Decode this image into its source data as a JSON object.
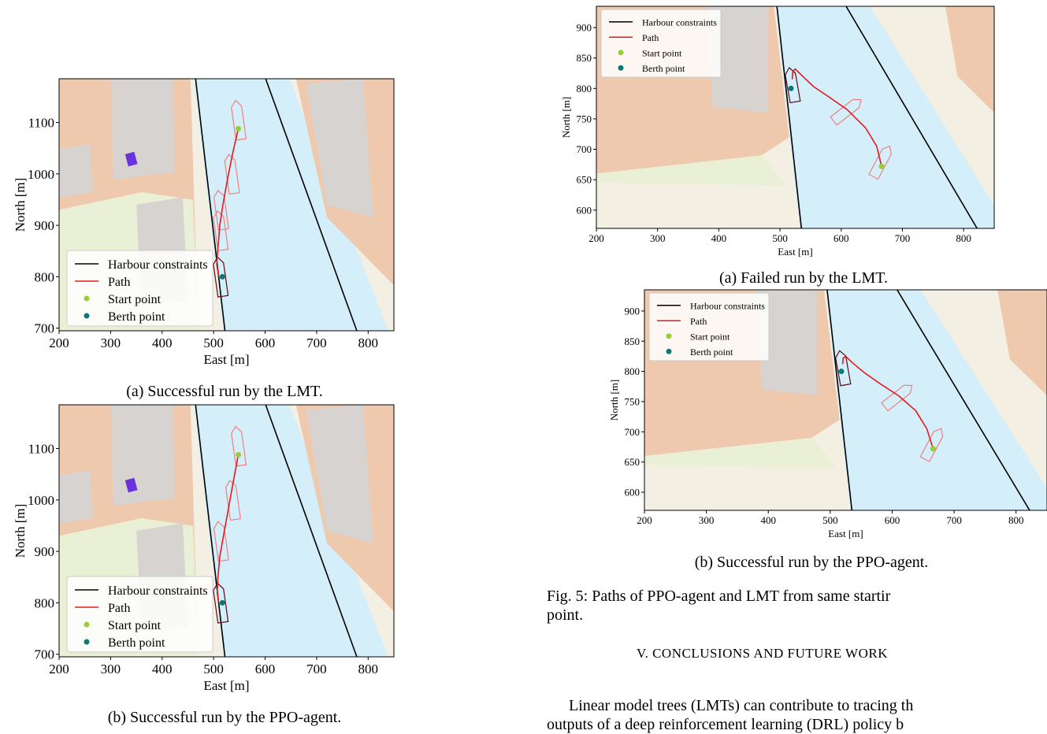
{
  "chart_data": [
    {
      "id": "left-a",
      "type": "line",
      "caption": "(a) Successful run by the LMT.",
      "xlabel": "East [m]",
      "ylabel": "North [m]",
      "xlim": [
        200,
        850
      ],
      "ylim": [
        695,
        1185
      ],
      "xticks": [
        200,
        300,
        400,
        500,
        600,
        700,
        800
      ],
      "yticks": [
        700,
        800,
        900,
        1000,
        1100
      ],
      "legend": [
        "Harbour constraints",
        "Path",
        "Start point",
        "Berth point"
      ],
      "legend_position": "lower-left",
      "constraints": [
        [
          [
            465,
            1185
          ],
          [
            522,
            695
          ]
        ],
        [
          [
            601,
            1185
          ],
          [
            778,
            695
          ]
        ]
      ],
      "path": [
        [
          548,
          1088
        ],
        [
          537,
          1040
        ],
        [
          527,
          990
        ],
        [
          518,
          940
        ],
        [
          512,
          900
        ],
        [
          508,
          850
        ],
        [
          506,
          825
        ],
        [
          510,
          800
        ]
      ],
      "start_point": [
        548,
        1088
      ],
      "berth_point": [
        517,
        800
      ],
      "vessel_outlines": [
        [
          548,
          1105
        ],
        [
          535,
          1000
        ],
        [
          514,
          930
        ],
        [
          513,
          890
        ],
        [
          513,
          800
        ]
      ],
      "colors": {
        "constraint": "#000000",
        "path": "#e31a1c",
        "start": "#9acd32",
        "berth": "#0b7a75",
        "vessel": "#f08080",
        "berth_vessel": "#5a0a14"
      }
    },
    {
      "id": "left-b",
      "type": "line",
      "caption": "(b) Successful run by the PPO-agent.",
      "xlabel": "East [m]",
      "ylabel": "North [m]",
      "xlim": [
        200,
        850
      ],
      "ylim": [
        695,
        1185
      ],
      "xticks": [
        200,
        300,
        400,
        500,
        600,
        700,
        800
      ],
      "yticks": [
        700,
        800,
        900,
        1000,
        1100
      ],
      "legend": [
        "Harbour constraints",
        "Path",
        "Start point",
        "Berth point"
      ],
      "legend_position": "lower-left",
      "constraints": [
        [
          [
            465,
            1185
          ],
          [
            522,
            695
          ]
        ],
        [
          [
            601,
            1185
          ],
          [
            778,
            695
          ]
        ]
      ],
      "path": [
        [
          548,
          1088
        ],
        [
          539,
          1040
        ],
        [
          530,
          990
        ],
        [
          520,
          935
        ],
        [
          512,
          890
        ],
        [
          508,
          845
        ],
        [
          507,
          820
        ],
        [
          510,
          800
        ]
      ],
      "start_point": [
        548,
        1088
      ],
      "berth_point": [
        517,
        800
      ],
      "vessel_outlines": [
        [
          548,
          1105
        ],
        [
          537,
          1000
        ],
        [
          514,
          920
        ],
        [
          513,
          800
        ]
      ],
      "colors": {
        "constraint": "#000000",
        "path": "#e31a1c",
        "start": "#9acd32",
        "berth": "#0b7a75",
        "vessel": "#f08080",
        "berth_vessel": "#5a0a14"
      }
    },
    {
      "id": "right-a",
      "type": "line",
      "caption": "(a) Failed run by the LMT.",
      "xlabel": "East [m]",
      "ylabel": "North [m]",
      "xlim": [
        200,
        850
      ],
      "ylim": [
        570,
        935
      ],
      "xticks": [
        200,
        300,
        400,
        500,
        600,
        700,
        800
      ],
      "yticks": [
        600,
        650,
        700,
        750,
        800,
        850,
        900
      ],
      "legend": [
        "Harbour constraints",
        "Path",
        "Start point",
        "Berth point"
      ],
      "legend_position": "upper-left",
      "constraints": [
        [
          [
            495,
            935
          ],
          [
            535,
            570
          ]
        ],
        [
          [
            608,
            935
          ],
          [
            822,
            570
          ]
        ]
      ],
      "path": [
        [
          666,
          672
        ],
        [
          658,
          705
        ],
        [
          640,
          735
        ],
        [
          610,
          765
        ],
        [
          580,
          786
        ],
        [
          555,
          803
        ],
        [
          535,
          822
        ],
        [
          525,
          832
        ],
        [
          521,
          828
        ],
        [
          520,
          815
        ]
      ],
      "start_point": [
        666,
        672
      ],
      "berth_point": [
        518,
        800
      ],
      "vessel_outlines": [
        [
          610,
          764
        ],
        [
          666,
          680
        ],
        [
          520,
          806
        ]
      ],
      "colors": {
        "constraint": "#000000",
        "path": "#e31a1c",
        "start": "#9acd32",
        "berth": "#0b7a75",
        "vessel": "#f08080",
        "berth_vessel": "#5a0a14"
      }
    },
    {
      "id": "right-b",
      "type": "line",
      "caption": "(b) Successful run by the PPO-agent.",
      "xlabel": "East [m]",
      "ylabel": "North [m]",
      "xlim": [
        200,
        850
      ],
      "ylim": [
        570,
        935
      ],
      "xticks": [
        200,
        300,
        400,
        500,
        600,
        700,
        800
      ],
      "yticks": [
        600,
        650,
        700,
        750,
        800,
        850,
        900
      ],
      "legend": [
        "Harbour constraints",
        "Path",
        "Start point",
        "Berth point"
      ],
      "legend_position": "upper-left",
      "constraints": [
        [
          [
            495,
            935
          ],
          [
            535,
            570
          ]
        ],
        [
          [
            608,
            935
          ],
          [
            822,
            570
          ]
        ]
      ],
      "path": [
        [
          666,
          672
        ],
        [
          656,
          705
        ],
        [
          638,
          735
        ],
        [
          610,
          760
        ],
        [
          580,
          780
        ],
        [
          555,
          798
        ],
        [
          535,
          815
        ],
        [
          525,
          825
        ],
        [
          521,
          822
        ],
        [
          520,
          812
        ]
      ],
      "start_point": [
        666,
        672
      ],
      "berth_point": [
        518,
        800
      ],
      "vessel_outlines": [
        [
          610,
          759
        ],
        [
          666,
          680
        ],
        [
          520,
          806
        ]
      ],
      "colors": {
        "constraint": "#000000",
        "path": "#e31a1c",
        "start": "#9acd32",
        "berth": "#0b7a75",
        "vessel": "#f08080",
        "berth_vessel": "#5a0a14"
      }
    }
  ],
  "figure_caption": {
    "line1": "Fig. 5: Paths of PPO-agent and LMT from same startir",
    "line2": "point."
  },
  "section_heading": "V. CONCLUSIONS AND FUTURE WORK",
  "body_text": {
    "line1": "Linear model trees (LMTs) can contribute to tracing th",
    "line2": "outputs of a deep reinforcement learning (DRL) policy b"
  }
}
